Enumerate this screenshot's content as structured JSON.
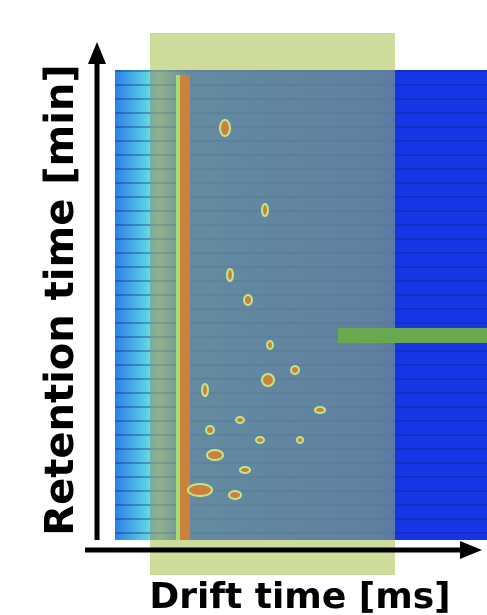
{
  "figure": {
    "y_axis_label": "Retention time [min]",
    "x_axis_label": "Drift time [ms]"
  }
}
